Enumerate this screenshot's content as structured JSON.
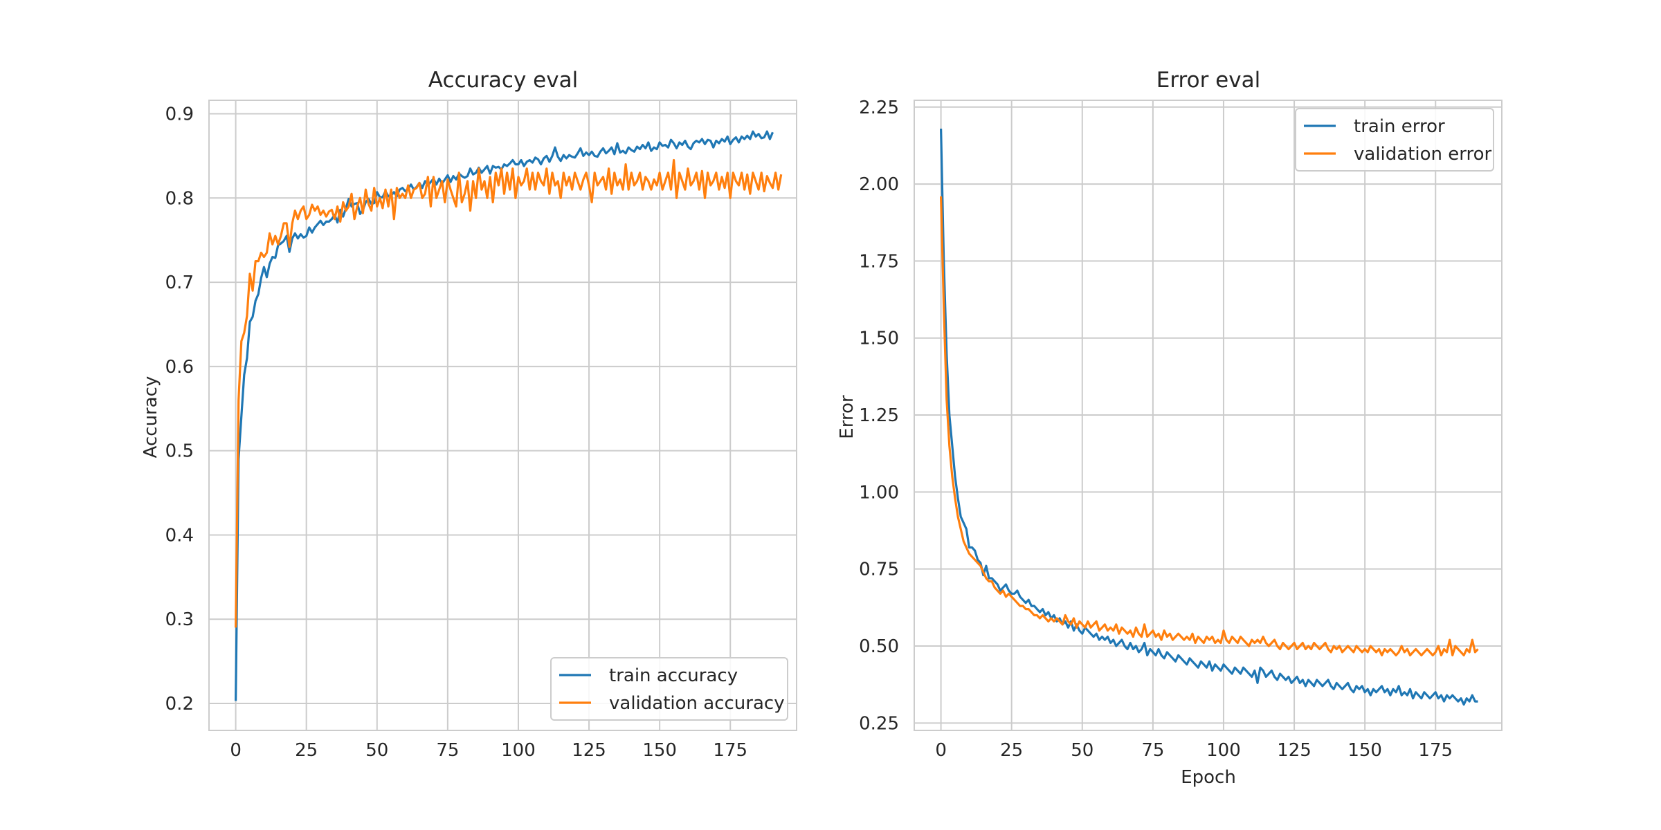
{
  "figure": {
    "colors": {
      "train": "#1f77b4",
      "validation": "#ff7f0e",
      "grid": "#cccccc",
      "frame": "#cccccc",
      "text": "#262626"
    }
  },
  "chart_data": [
    {
      "type": "line",
      "title": "Accuracy eval",
      "xlabel": "",
      "ylabel": "Accuracy",
      "xlim": [
        -9.45,
        198.45
      ],
      "ylim": [
        0.168,
        0.916
      ],
      "xticks": [
        0,
        25,
        50,
        75,
        100,
        125,
        150,
        175
      ],
      "yticks": [
        0.2,
        0.3,
        0.4,
        0.5,
        0.6,
        0.7,
        0.8,
        0.9
      ],
      "grid": true,
      "legend": "lower-right",
      "series": [
        {
          "name": "train accuracy",
          "color": "#1f77b4",
          "x_start": 0,
          "x_step": 1,
          "values": [
            0.203,
            0.49,
            0.541,
            0.59,
            0.61,
            0.653,
            0.659,
            0.678,
            0.686,
            0.705,
            0.718,
            0.706,
            0.722,
            0.73,
            0.729,
            0.744,
            0.746,
            0.749,
            0.755,
            0.736,
            0.752,
            0.758,
            0.752,
            0.757,
            0.753,
            0.755,
            0.765,
            0.759,
            0.765,
            0.769,
            0.773,
            0.768,
            0.772,
            0.772,
            0.775,
            0.78,
            0.771,
            0.786,
            0.778,
            0.788,
            0.799,
            0.79,
            0.793,
            0.794,
            0.781,
            0.786,
            0.795,
            0.799,
            0.793,
            0.794,
            0.807,
            0.801,
            0.801,
            0.808,
            0.802,
            0.803,
            0.807,
            0.802,
            0.81,
            0.812,
            0.808,
            0.811,
            0.816,
            0.81,
            0.813,
            0.818,
            0.812,
            0.82,
            0.815,
            0.819,
            0.823,
            0.816,
            0.823,
            0.817,
            0.822,
            0.827,
            0.819,
            0.826,
            0.822,
            0.829,
            0.826,
            0.824,
            0.826,
            0.835,
            0.828,
            0.83,
            0.836,
            0.83,
            0.834,
            0.838,
            0.829,
            0.838,
            0.836,
            0.837,
            0.834,
            0.84,
            0.838,
            0.841,
            0.845,
            0.84,
            0.84,
            0.845,
            0.838,
            0.843,
            0.845,
            0.842,
            0.848,
            0.846,
            0.84,
            0.847,
            0.85,
            0.843,
            0.85,
            0.86,
            0.849,
            0.844,
            0.851,
            0.847,
            0.851,
            0.849,
            0.848,
            0.853,
            0.859,
            0.85,
            0.854,
            0.851,
            0.855,
            0.85,
            0.849,
            0.855,
            0.859,
            0.853,
            0.856,
            0.86,
            0.852,
            0.865,
            0.854,
            0.856,
            0.853,
            0.86,
            0.857,
            0.855,
            0.861,
            0.858,
            0.863,
            0.859,
            0.866,
            0.856,
            0.86,
            0.858,
            0.866,
            0.862,
            0.863,
            0.86,
            0.869,
            0.865,
            0.859,
            0.866,
            0.863,
            0.868,
            0.861,
            0.858,
            0.865,
            0.868,
            0.866,
            0.87,
            0.864,
            0.869,
            0.868,
            0.86,
            0.868,
            0.865,
            0.87,
            0.867,
            0.873,
            0.864,
            0.869,
            0.872,
            0.866,
            0.873,
            0.87,
            0.874,
            0.87,
            0.879,
            0.873,
            0.876,
            0.871,
            0.872,
            0.879,
            0.87,
            0.878
          ]
        },
        {
          "name": "validation accuracy",
          "color": "#ff7f0e",
          "x_start": 0,
          "x_step": 1,
          "values": [
            0.29,
            0.56,
            0.63,
            0.64,
            0.66,
            0.71,
            0.69,
            0.725,
            0.725,
            0.735,
            0.73,
            0.735,
            0.758,
            0.745,
            0.755,
            0.745,
            0.755,
            0.77,
            0.77,
            0.742,
            0.77,
            0.785,
            0.775,
            0.785,
            0.79,
            0.775,
            0.78,
            0.792,
            0.785,
            0.79,
            0.78,
            0.785,
            0.778,
            0.784,
            0.786,
            0.775,
            0.79,
            0.772,
            0.795,
            0.785,
            0.79,
            0.805,
            0.775,
            0.79,
            0.8,
            0.782,
            0.81,
            0.793,
            0.785,
            0.812,
            0.79,
            0.8,
            0.788,
            0.81,
            0.79,
            0.81,
            0.775,
            0.812,
            0.8,
            0.805,
            0.8,
            0.815,
            0.8,
            0.81,
            0.812,
            0.818,
            0.8,
            0.805,
            0.825,
            0.79,
            0.825,
            0.8,
            0.81,
            0.82,
            0.795,
            0.822,
            0.81,
            0.8,
            0.79,
            0.83,
            0.795,
            0.805,
            0.82,
            0.785,
            0.82,
            0.8,
            0.835,
            0.81,
            0.82,
            0.8,
            0.825,
            0.795,
            0.83,
            0.815,
            0.835,
            0.805,
            0.83,
            0.81,
            0.835,
            0.8,
            0.825,
            0.815,
            0.82,
            0.835,
            0.81,
            0.83,
            0.81,
            0.83,
            0.82,
            0.815,
            0.835,
            0.805,
            0.83,
            0.815,
            0.82,
            0.8,
            0.83,
            0.815,
            0.825,
            0.81,
            0.83,
            0.82,
            0.81,
            0.822,
            0.83,
            0.815,
            0.795,
            0.83,
            0.815,
            0.82,
            0.825,
            0.81,
            0.835,
            0.805,
            0.83,
            0.815,
            0.822,
            0.81,
            0.84,
            0.81,
            0.83,
            0.815,
            0.82,
            0.83,
            0.81,
            0.825,
            0.82,
            0.81,
            0.822,
            0.815,
            0.83,
            0.81,
            0.82,
            0.83,
            0.81,
            0.845,
            0.8,
            0.83,
            0.82,
            0.81,
            0.835,
            0.815,
            0.82,
            0.83,
            0.81,
            0.832,
            0.8,
            0.83,
            0.815,
            0.82,
            0.83,
            0.81,
            0.825,
            0.812,
            0.83,
            0.8,
            0.83,
            0.82,
            0.815,
            0.83,
            0.81,
            0.828,
            0.805,
            0.83,
            0.82,
            0.81,
            0.83,
            0.808,
            0.826,
            0.818,
            0.812,
            0.83,
            0.81,
            0.828
          ]
        }
      ]
    },
    {
      "type": "line",
      "title": "Error eval",
      "xlabel": "Epoch",
      "ylabel": "Error",
      "xlim": [
        -9.45,
        198.45
      ],
      "ylim": [
        0.226,
        2.272
      ],
      "xticks": [
        0,
        25,
        50,
        75,
        100,
        125,
        150,
        175
      ],
      "yticks": [
        0.25,
        0.5,
        0.75,
        1.0,
        1.25,
        1.5,
        1.75,
        2.0,
        2.25
      ],
      "ytick_labels": [
        "0.25",
        "0.50",
        "0.75",
        "1.00",
        "1.25",
        "1.50",
        "1.75",
        "2.00",
        "2.25"
      ],
      "grid": true,
      "legend": "upper-right",
      "series": [
        {
          "name": "train error",
          "color": "#1f77b4",
          "x_start": 0,
          "x_step": 1,
          "values": [
            2.18,
            1.75,
            1.45,
            1.25,
            1.15,
            1.05,
            0.98,
            0.92,
            0.9,
            0.88,
            0.82,
            0.82,
            0.81,
            0.78,
            0.77,
            0.73,
            0.76,
            0.72,
            0.72,
            0.71,
            0.7,
            0.68,
            0.69,
            0.7,
            0.68,
            0.67,
            0.67,
            0.68,
            0.66,
            0.65,
            0.64,
            0.65,
            0.63,
            0.63,
            0.62,
            0.61,
            0.62,
            0.6,
            0.61,
            0.59,
            0.6,
            0.58,
            0.59,
            0.57,
            0.58,
            0.56,
            0.58,
            0.55,
            0.57,
            0.55,
            0.54,
            0.56,
            0.55,
            0.54,
            0.53,
            0.54,
            0.52,
            0.53,
            0.52,
            0.53,
            0.51,
            0.52,
            0.5,
            0.51,
            0.52,
            0.5,
            0.49,
            0.51,
            0.49,
            0.5,
            0.48,
            0.49,
            0.51,
            0.47,
            0.49,
            0.48,
            0.47,
            0.49,
            0.47,
            0.46,
            0.48,
            0.47,
            0.46,
            0.45,
            0.47,
            0.46,
            0.45,
            0.44,
            0.46,
            0.45,
            0.44,
            0.43,
            0.45,
            0.44,
            0.43,
            0.45,
            0.42,
            0.44,
            0.43,
            0.42,
            0.44,
            0.43,
            0.42,
            0.41,
            0.43,
            0.42,
            0.41,
            0.43,
            0.42,
            0.41,
            0.4,
            0.42,
            0.38,
            0.43,
            0.42,
            0.4,
            0.41,
            0.42,
            0.4,
            0.39,
            0.41,
            0.4,
            0.39,
            0.4,
            0.38,
            0.39,
            0.4,
            0.38,
            0.39,
            0.37,
            0.39,
            0.38,
            0.37,
            0.39,
            0.38,
            0.37,
            0.38,
            0.39,
            0.37,
            0.36,
            0.38,
            0.37,
            0.36,
            0.37,
            0.38,
            0.36,
            0.35,
            0.37,
            0.36,
            0.37,
            0.35,
            0.36,
            0.34,
            0.36,
            0.35,
            0.36,
            0.37,
            0.35,
            0.36,
            0.34,
            0.36,
            0.35,
            0.37,
            0.34,
            0.35,
            0.34,
            0.36,
            0.33,
            0.35,
            0.34,
            0.33,
            0.35,
            0.34,
            0.33,
            0.34,
            0.35,
            0.33,
            0.34,
            0.32,
            0.34,
            0.33,
            0.34,
            0.33,
            0.32,
            0.33,
            0.31,
            0.33,
            0.32,
            0.34,
            0.32,
            0.32
          ]
        },
        {
          "name": "validation error",
          "color": "#ff7f0e",
          "x_start": 0,
          "x_step": 1,
          "values": [
            1.96,
            1.6,
            1.3,
            1.15,
            1.05,
            0.98,
            0.92,
            0.88,
            0.84,
            0.82,
            0.8,
            0.79,
            0.78,
            0.77,
            0.76,
            0.74,
            0.72,
            0.71,
            0.71,
            0.69,
            0.68,
            0.67,
            0.68,
            0.66,
            0.67,
            0.66,
            0.65,
            0.64,
            0.63,
            0.63,
            0.62,
            0.62,
            0.61,
            0.6,
            0.6,
            0.59,
            0.6,
            0.59,
            0.58,
            0.59,
            0.58,
            0.59,
            0.58,
            0.57,
            0.6,
            0.58,
            0.57,
            0.59,
            0.56,
            0.58,
            0.57,
            0.56,
            0.58,
            0.56,
            0.57,
            0.58,
            0.55,
            0.56,
            0.57,
            0.55,
            0.56,
            0.55,
            0.57,
            0.54,
            0.56,
            0.55,
            0.54,
            0.55,
            0.53,
            0.56,
            0.54,
            0.53,
            0.57,
            0.53,
            0.54,
            0.55,
            0.53,
            0.54,
            0.52,
            0.55,
            0.53,
            0.54,
            0.52,
            0.53,
            0.54,
            0.53,
            0.52,
            0.53,
            0.52,
            0.54,
            0.51,
            0.53,
            0.52,
            0.51,
            0.53,
            0.52,
            0.53,
            0.51,
            0.52,
            0.51,
            0.55,
            0.52,
            0.51,
            0.53,
            0.52,
            0.51,
            0.53,
            0.52,
            0.51,
            0.5,
            0.52,
            0.51,
            0.52,
            0.51,
            0.53,
            0.51,
            0.5,
            0.51,
            0.52,
            0.5,
            0.49,
            0.51,
            0.5,
            0.49,
            0.5,
            0.51,
            0.49,
            0.5,
            0.51,
            0.49,
            0.5,
            0.49,
            0.51,
            0.5,
            0.49,
            0.5,
            0.51,
            0.49,
            0.48,
            0.5,
            0.49,
            0.5,
            0.48,
            0.49,
            0.5,
            0.49,
            0.48,
            0.5,
            0.49,
            0.48,
            0.49,
            0.48,
            0.5,
            0.49,
            0.48,
            0.49,
            0.47,
            0.49,
            0.48,
            0.49,
            0.48,
            0.47,
            0.48,
            0.5,
            0.48,
            0.49,
            0.47,
            0.48,
            0.49,
            0.48,
            0.47,
            0.48,
            0.49,
            0.48,
            0.47,
            0.48,
            0.5,
            0.47,
            0.49,
            0.48,
            0.52,
            0.47,
            0.5,
            0.49,
            0.48,
            0.47,
            0.49,
            0.48,
            0.52,
            0.48,
            0.49
          ]
        }
      ]
    }
  ]
}
